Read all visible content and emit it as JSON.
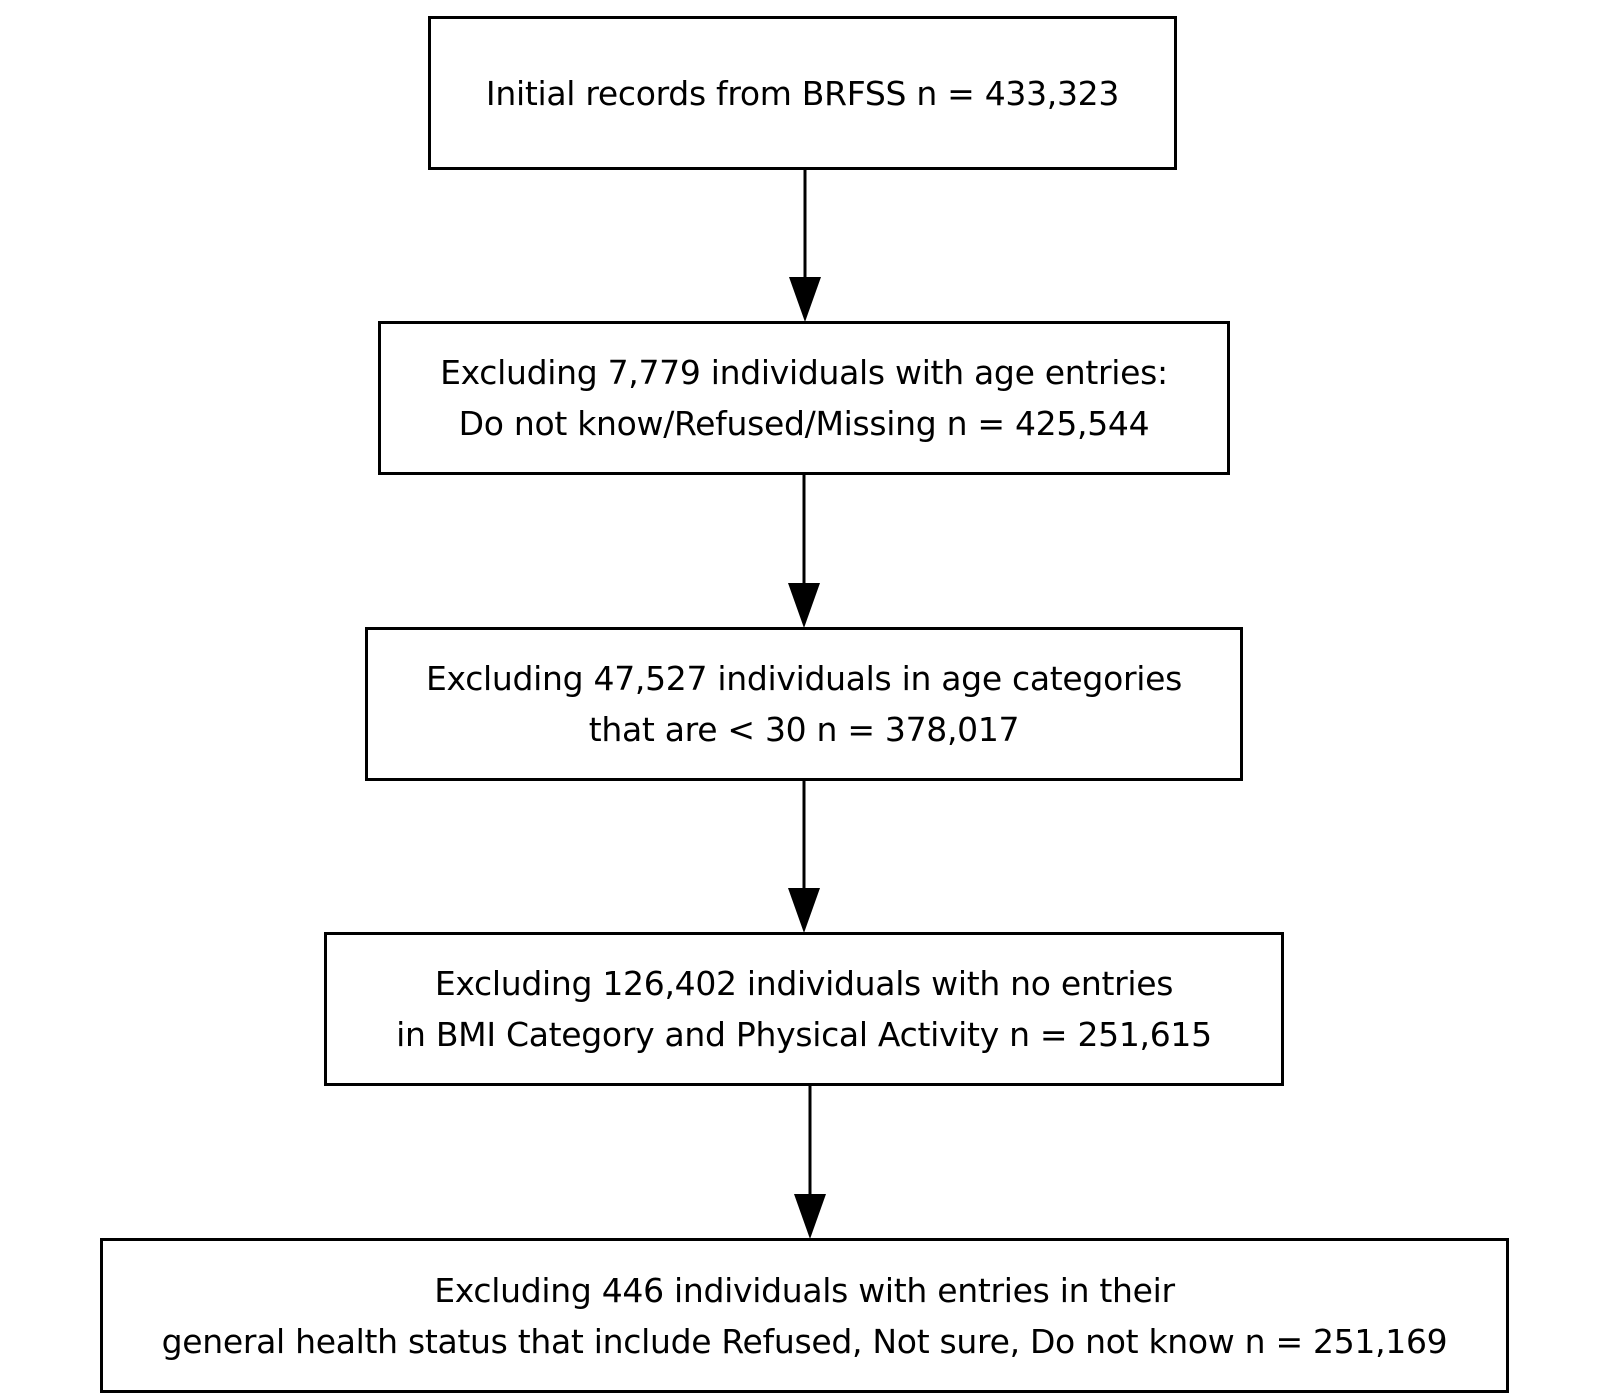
{
  "flowchart": {
    "steps": [
      {
        "lines": [
          "Initial records from BRFSS n = 433,323"
        ]
      },
      {
        "lines": [
          "Excluding 7,779 individuals with age entries:",
          "Do not know/Refused/Missing n = 425,544"
        ]
      },
      {
        "lines": [
          "Excluding 47,527 individuals in age categories",
          "that are < 30 n = 378,017"
        ]
      },
      {
        "lines": [
          "Excluding 126,402 individuals with no entries",
          "in BMI Category and Physical Activity n = 251,615"
        ]
      },
      {
        "lines": [
          "Excluding 446 individuals with entries in their",
          "general health status that include Refused, Not sure, Do not know n = 251,169"
        ]
      }
    ]
  },
  "colors": {
    "stroke": "#000000",
    "background": "#ffffff"
  }
}
